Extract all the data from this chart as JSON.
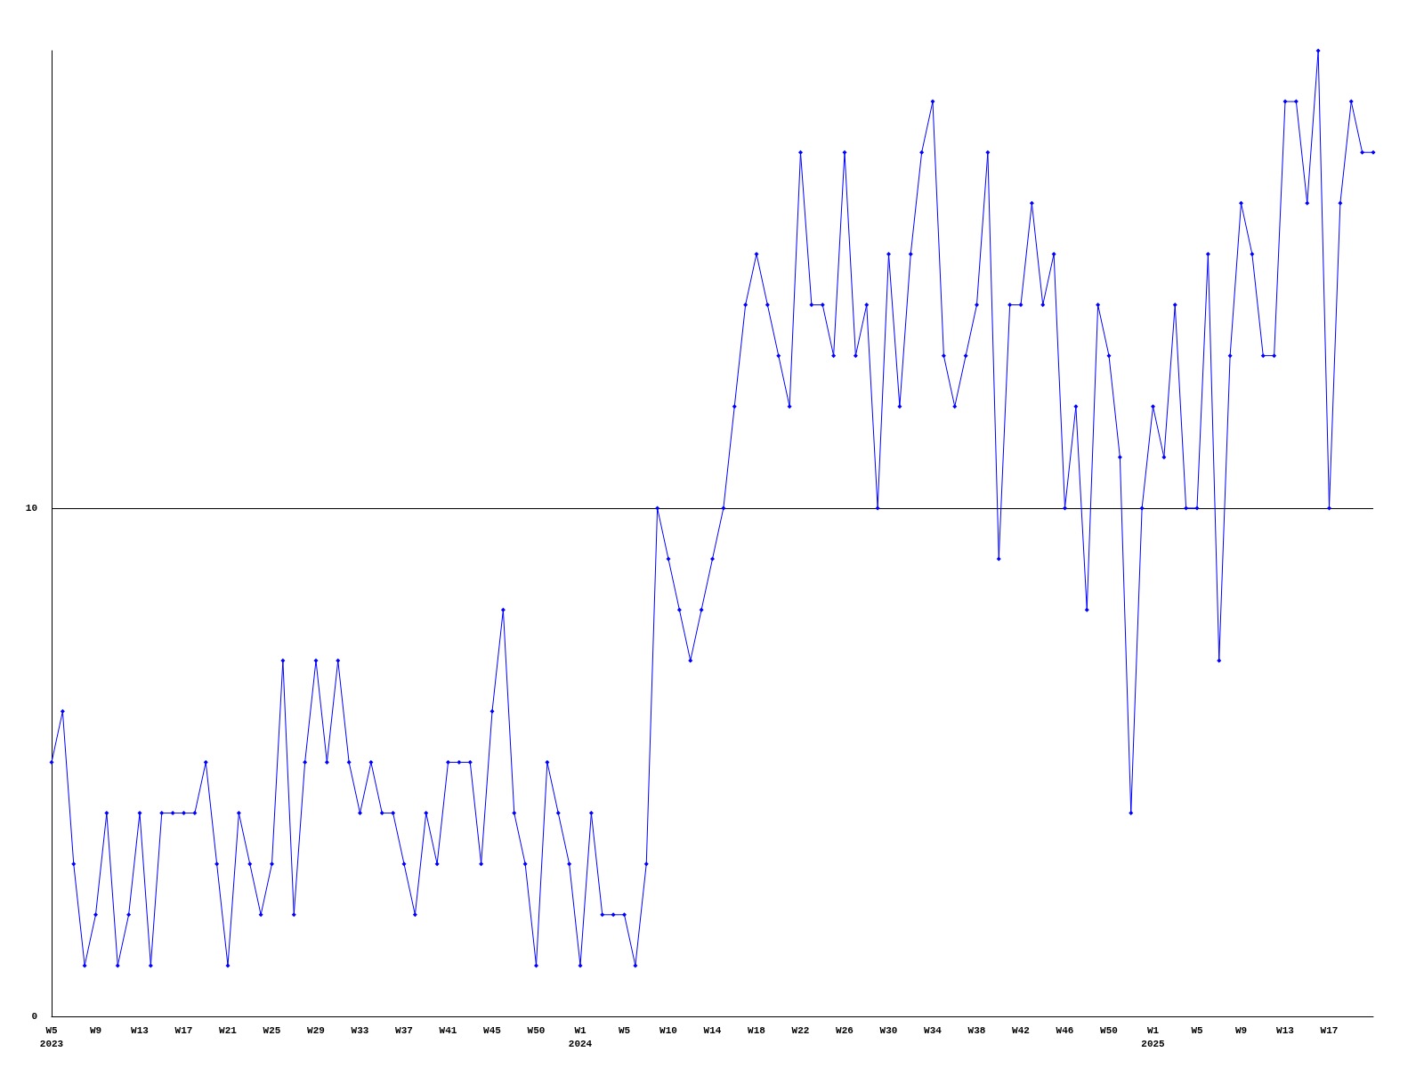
{
  "chart_data": {
    "type": "line",
    "categories": [
      "W5\n2023",
      null,
      null,
      null,
      "W9",
      null,
      null,
      null,
      "W13",
      null,
      null,
      null,
      "W17",
      null,
      null,
      null,
      "W21",
      null,
      null,
      null,
      "W25",
      null,
      null,
      null,
      "W29",
      null,
      null,
      null,
      "W33",
      null,
      null,
      null,
      "W37",
      null,
      null,
      null,
      "W41",
      null,
      null,
      null,
      "W45",
      null,
      null,
      null,
      "W50",
      null,
      null,
      null,
      "W1\n2024",
      null,
      null,
      null,
      "W5",
      null,
      null,
      null,
      "W10",
      null,
      null,
      null,
      "W14",
      null,
      null,
      null,
      "W18",
      null,
      null,
      null,
      "W22",
      null,
      null,
      null,
      "W26",
      null,
      null,
      null,
      "W30",
      null,
      null,
      null,
      "W34",
      null,
      null,
      null,
      "W38",
      null,
      null,
      null,
      "W42",
      null,
      null,
      null,
      "W46",
      null,
      null,
      null,
      "W50",
      null,
      null,
      null,
      "W1\n2025",
      null,
      null,
      null,
      "W5",
      null,
      null,
      null,
      "W9",
      null,
      null,
      null,
      "W13",
      null,
      null,
      null,
      "W17",
      null,
      null,
      null,
      null
    ],
    "series": [
      {
        "color": "#0000ff",
        "values": [
          5,
          6,
          3,
          1,
          2,
          4,
          1,
          2,
          4,
          1,
          4,
          4,
          4,
          4,
          5,
          3,
          1,
          4,
          3,
          2,
          3,
          7,
          2,
          5,
          7,
          5,
          7,
          5,
          4,
          5,
          4,
          4,
          3,
          2,
          4,
          3,
          5,
          5,
          5,
          3,
          6,
          8,
          4,
          3,
          1,
          5,
          4,
          3,
          1,
          4,
          2,
          2,
          2,
          1,
          3,
          10,
          9,
          8,
          7,
          8,
          9,
          10,
          12,
          14,
          15,
          14,
          13,
          12,
          17,
          14,
          14,
          13,
          17,
          13,
          14,
          10,
          15,
          12,
          15,
          17,
          18,
          13,
          12,
          13,
          14,
          17,
          9,
          14,
          14,
          16,
          14,
          15,
          10,
          12,
          8,
          14,
          13,
          11,
          4,
          10,
          12,
          11,
          14,
          10,
          10,
          15,
          7,
          13,
          16,
          15,
          13,
          13,
          18,
          18,
          16,
          19,
          10,
          16,
          18,
          17,
          17
        ]
      }
    ],
    "ylim": [
      0,
      19
    ],
    "yticks": [
      0,
      10
    ],
    "grid": "y",
    "marker": "diamond",
    "line_style": "solid"
  }
}
